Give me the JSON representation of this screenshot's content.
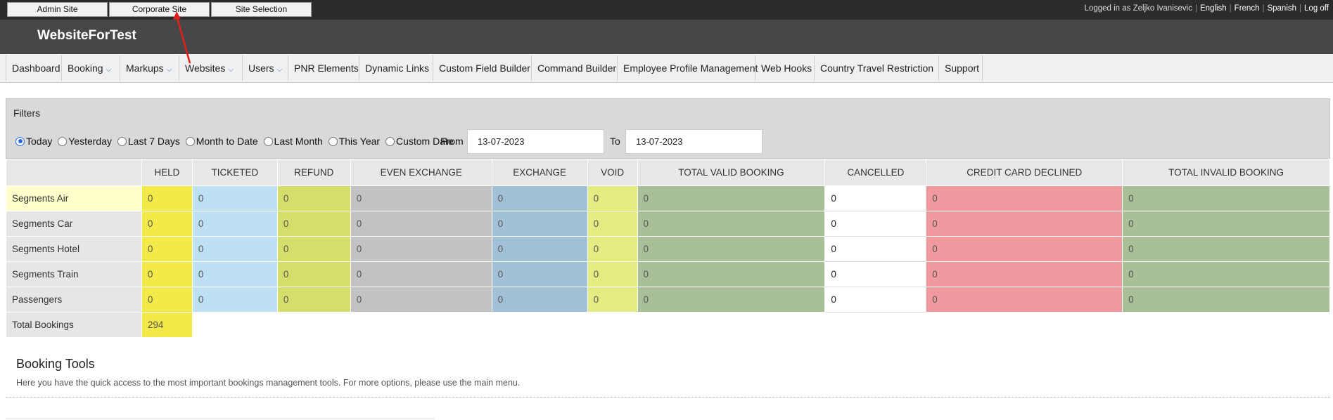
{
  "topbar": {
    "site_buttons": [
      "Admin Site",
      "Corporate Site",
      "Site Selection"
    ],
    "logged_in_text": "Logged in as Zeljko Ivanisevic",
    "languages": [
      "English",
      "French",
      "Spanish"
    ],
    "logoff": "Log off"
  },
  "brand": "WebsiteForTest",
  "nav": [
    {
      "label": "Dashboard",
      "dropdown": false
    },
    {
      "label": "Booking",
      "dropdown": true
    },
    {
      "label": "Markups",
      "dropdown": true
    },
    {
      "label": "Websites",
      "dropdown": true
    },
    {
      "label": "Users",
      "dropdown": true
    },
    {
      "label": "PNR Elements",
      "dropdown": false
    },
    {
      "label": "Dynamic Links",
      "dropdown": false
    },
    {
      "label": "Custom Field Builder",
      "dropdown": false
    },
    {
      "label": "Command Builder",
      "dropdown": false
    },
    {
      "label": "Employee Profile Management",
      "dropdown": false
    },
    {
      "label": "Web Hooks",
      "dropdown": false
    },
    {
      "label": "Country Travel Restriction",
      "dropdown": false
    },
    {
      "label": "Support",
      "dropdown": false
    }
  ],
  "filters": {
    "title": "Filters",
    "options": [
      "Today",
      "Yesterday",
      "Last 7 Days",
      "Month to Date",
      "Last Month",
      "This Year",
      "Custom Date"
    ],
    "selected": "Today",
    "from_label": "From",
    "to_label": "To",
    "from_value": "13-07-2023",
    "to_value": "13-07-2023"
  },
  "stats": {
    "columns": [
      "HELD",
      "TICKETED",
      "REFUND",
      "EVEN EXCHANGE",
      "EXCHANGE",
      "VOID",
      "TOTAL VALID BOOKING",
      "CANCELLED",
      "CREDIT CARD DECLINED",
      "TOTAL INVALID BOOKING"
    ],
    "rows": [
      {
        "label": "Segments Air",
        "values": [
          "0",
          "0",
          "0",
          "0",
          "0",
          "0",
          "0",
          "0",
          "0",
          "0"
        ]
      },
      {
        "label": "Segments Car",
        "values": [
          "0",
          "0",
          "0",
          "0",
          "0",
          "0",
          "0",
          "0",
          "0",
          "0"
        ]
      },
      {
        "label": "Segments Hotel",
        "values": [
          "0",
          "0",
          "0",
          "0",
          "0",
          "0",
          "0",
          "0",
          "0",
          "0"
        ]
      },
      {
        "label": "Segments Train",
        "values": [
          "0",
          "0",
          "0",
          "0",
          "0",
          "0",
          "0",
          "0",
          "0",
          "0"
        ]
      },
      {
        "label": "Passengers",
        "values": [
          "0",
          "0",
          "0",
          "0",
          "0",
          "0",
          "0",
          "0",
          "0",
          "0"
        ]
      }
    ],
    "total_label": "Total Bookings",
    "total_value": "294"
  },
  "booking_tools": {
    "title": "Booking Tools",
    "description": "Here you have the quick access to the most important bookings management tools. For more options, please use the main menu."
  },
  "colors": {
    "topbar": "#2b2b2b",
    "brandbar": "#474747",
    "annotation_arrow": "#e0201a"
  }
}
